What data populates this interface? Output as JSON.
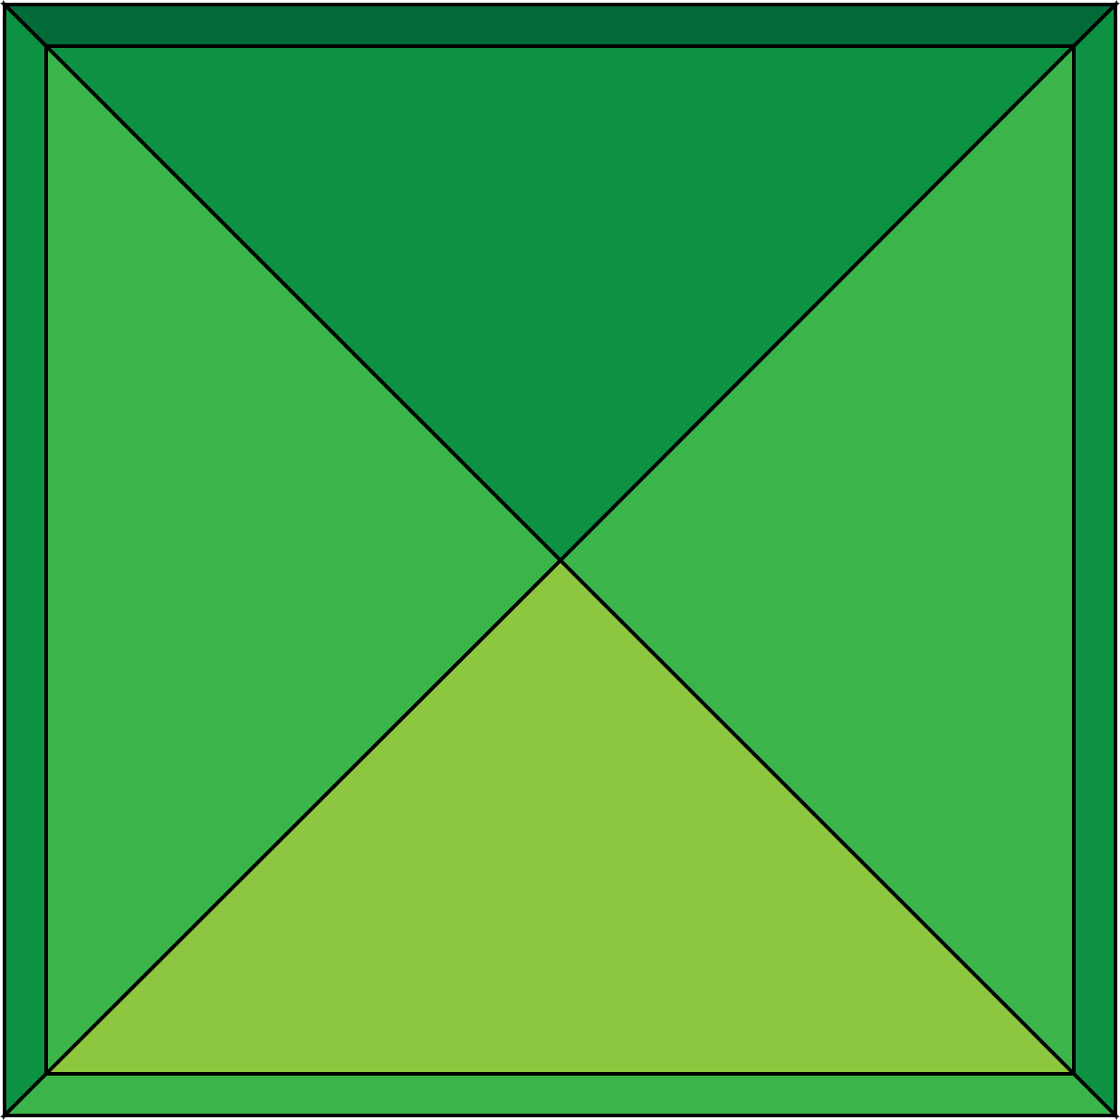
{
  "figure": {
    "description_free": true,
    "colors": {
      "outline": "#000000",
      "background": "#ffffff",
      "frame_top": "#036b3a",
      "frame_left": "#0c9242",
      "frame_right": "#0c9242",
      "frame_bottom": "#3bb54a",
      "face_top": "#0c9242",
      "face_left": "#3bb54a",
      "face_right": "#3bb54a",
      "face_bottom": "#8dc63f"
    }
  }
}
